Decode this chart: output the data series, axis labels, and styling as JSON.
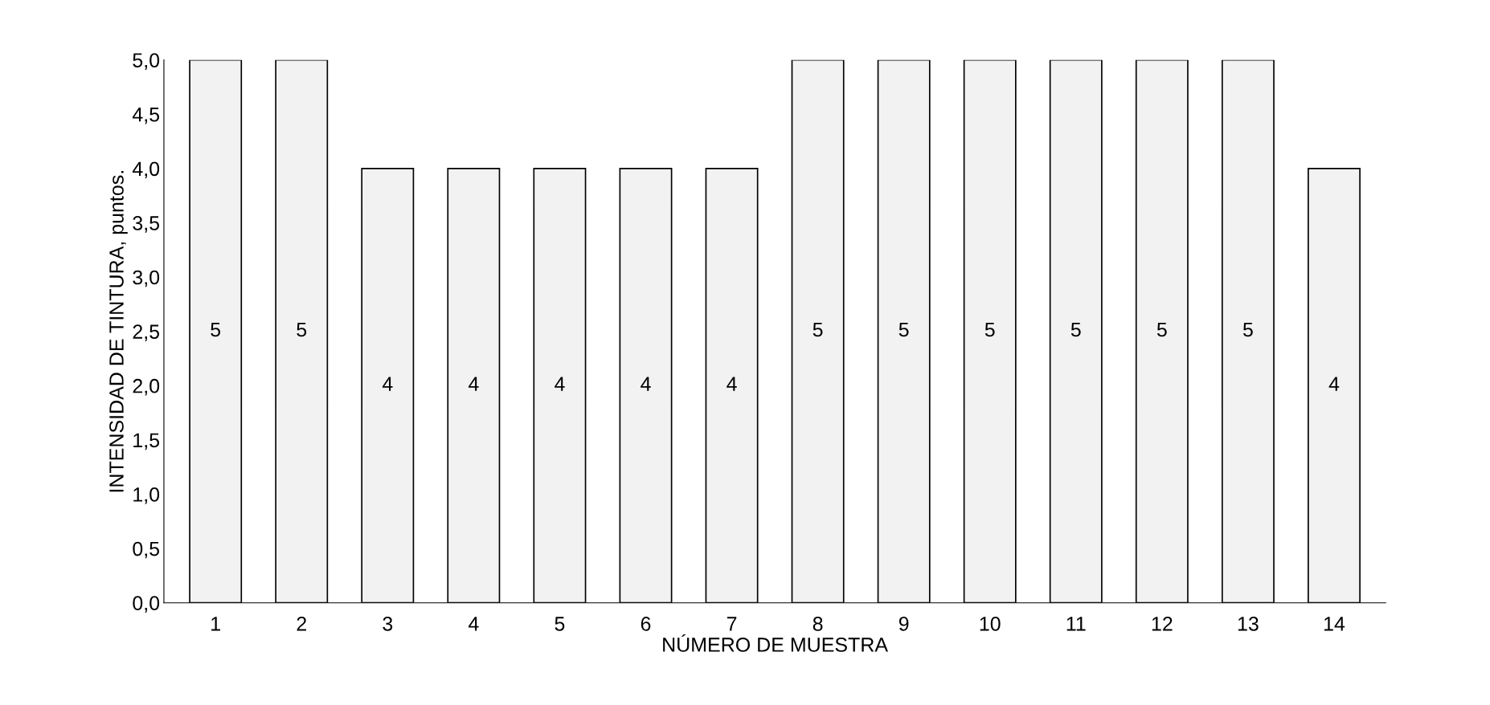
{
  "chart_data": {
    "type": "bar",
    "categories": [
      "1",
      "2",
      "3",
      "4",
      "5",
      "6",
      "7",
      "8",
      "9",
      "10",
      "11",
      "12",
      "13",
      "14"
    ],
    "values": [
      5,
      5,
      4,
      4,
      4,
      4,
      4,
      5,
      5,
      5,
      5,
      5,
      5,
      4
    ],
    "color": "#f2f2f2",
    "xlabel": "NÚMERO DE MUESTRA",
    "ylabel": "INTENSIDAD DE TINTURA, puntos.",
    "ylim": [
      0,
      5
    ],
    "yticks": [
      {
        "value": 0,
        "label": "0,0"
      },
      {
        "value": 0.5,
        "label": "0,5"
      },
      {
        "value": 1,
        "label": "1,0"
      },
      {
        "value": 1.5,
        "label": "1,5"
      },
      {
        "value": 2,
        "label": "2,0"
      },
      {
        "value": 2.5,
        "label": "2,5"
      },
      {
        "value": 3,
        "label": "3,0"
      },
      {
        "value": 3.5,
        "label": "3,5"
      },
      {
        "value": 4,
        "label": "4,0"
      },
      {
        "value": 4.5,
        "label": "4,5"
      },
      {
        "value": 5,
        "label": "5,0"
      }
    ],
    "data_labels": true,
    "grid": false
  }
}
